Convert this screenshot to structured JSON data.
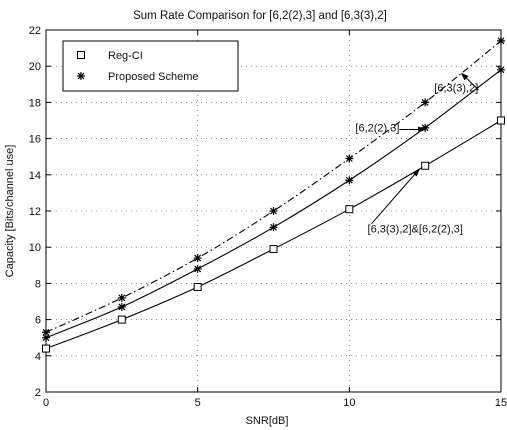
{
  "chart_data": {
    "type": "line",
    "title": "Sum Rate Comparison for [6,2(2),3] and [6,3(3),2]",
    "xlabel": "SNR[dB]",
    "ylabel": "Capacity [Bits/channel use]",
    "xlim": [
      0,
      15
    ],
    "ylim": [
      2,
      22
    ],
    "xticks": [
      0,
      5,
      10,
      15
    ],
    "yticks": [
      2,
      4,
      6,
      8,
      10,
      12,
      14,
      16,
      18,
      20,
      22
    ],
    "grid": true,
    "legend_position": "top-left",
    "legend": [
      {
        "label": "Reg-CI",
        "marker": "square"
      },
      {
        "label": "Proposed Scheme",
        "marker": "star"
      }
    ],
    "series": [
      {
        "line": "solid",
        "marker": "square",
        "x": [
          0,
          2.5,
          5,
          7.5,
          10,
          12.5,
          15
        ],
        "y": [
          4.4,
          6.0,
          7.8,
          9.9,
          12.1,
          14.5,
          17.0
        ]
      },
      {
        "line": "solid",
        "marker": "star",
        "x": [
          0,
          2.5,
          5,
          7.5,
          10,
          12.5,
          15
        ],
        "y": [
          5.0,
          6.7,
          8.8,
          11.1,
          13.7,
          16.6,
          19.8
        ]
      },
      {
        "line": "dashdot",
        "marker": "star",
        "x": [
          0,
          2.5,
          5,
          7.5,
          10,
          12.5,
          15
        ],
        "y": [
          5.3,
          7.2,
          9.4,
          12.0,
          14.9,
          18.0,
          21.4
        ]
      }
    ],
    "annotations": [
      {
        "text": "[6,3(3),2]",
        "x": 12.8,
        "y": 18.6,
        "target_x": 13.7,
        "target_y": 19.6
      },
      {
        "text": "[6,2(2),3]",
        "x": 10.2,
        "y": 16.4,
        "target_x": 12.5,
        "target_y": 16.5
      },
      {
        "text": "[6,3(3),2]&[6,2(2),3]",
        "x": 10.6,
        "y": 10.8,
        "target_x": 12.3,
        "target_y": 14.3
      }
    ]
  }
}
